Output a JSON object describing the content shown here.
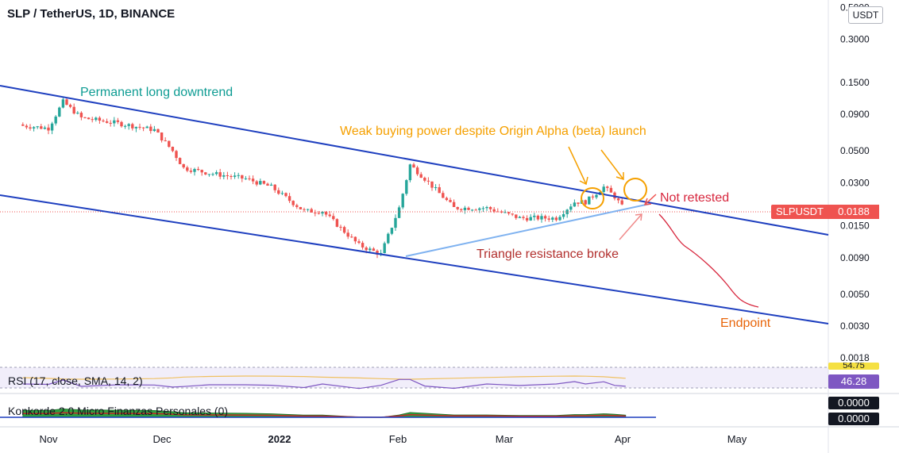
{
  "header": {
    "title": "SLP / TetherUS, 1D, BINANCE",
    "unit": "USDT"
  },
  "colors": {
    "up": "#26a69a",
    "down": "#ef5350",
    "channel": "#1e3fbf",
    "support": "#7fb2f0",
    "teal": "#0e9c93",
    "orange": "#f5a000",
    "red": "#d7263d"
  },
  "price_axis": {
    "labels": [
      "0.5000",
      "0.3000",
      "0.1500",
      "0.0900",
      "0.0500",
      "0.0300",
      "0.0150",
      "0.0090",
      "0.0050",
      "0.0030",
      "0.0018"
    ]
  },
  "time_axis": {
    "labels": [
      "Nov",
      "Dec",
      "2022",
      "Feb",
      "Mar",
      "Apr",
      "May"
    ]
  },
  "annotations": {
    "downtrend": "Permanent long downtrend",
    "weak_buying": "Weak buying power despite Origin Alpha (beta) launch",
    "not_retested": "Not retested",
    "triangle": "Triangle resistance broke",
    "endpoint": "Endpoint"
  },
  "last_price": {
    "symbol": "SLPUSDT",
    "value": "0.0188"
  },
  "rsi": {
    "label": "RSI (17, close, SMA, 14, 2)",
    "value": "46.28",
    "value2": "54.75"
  },
  "konkorde": {
    "label": "Konkorde 2.0 Micro Finanzas Personales (0)",
    "value1": "0.0000",
    "value2": "0.0000"
  },
  "chart_data": {
    "type": "line",
    "title": "SLP / TetherUS, 1D, BINANCE",
    "xlabel": "",
    "ylabel": "",
    "y_scale": "log",
    "ylim": [
      0.0018,
      0.5
    ],
    "x_ticks": [
      "Nov",
      "Dec",
      "2022",
      "Feb",
      "Mar",
      "Apr",
      "May"
    ],
    "y_ticks": [
      0.5,
      0.3,
      0.15,
      0.09,
      0.05,
      0.03,
      0.015,
      0.009,
      0.005,
      0.003,
      0.0018
    ],
    "series": [
      {
        "x": [
          "2021-10-25",
          "2021-11-01",
          "2021-11-05",
          "2021-11-10",
          "2021-11-20",
          "2021-11-30",
          "2021-12-05",
          "2021-12-08",
          "2021-12-15",
          "2021-12-25",
          "2022-01-01",
          "2022-01-10",
          "2022-01-15",
          "2022-01-25",
          "2022-01-31",
          "2022-02-05",
          "2022-02-08",
          "2022-02-12",
          "2022-02-20",
          "2022-03-01",
          "2022-03-10",
          "2022-03-20",
          "2022-03-25",
          "2022-03-28",
          "2022-04-02",
          "2022-04-05",
          "2022-04-08"
        ],
        "values": [
          0.075,
          0.072,
          0.11,
          0.085,
          0.078,
          0.07,
          0.05,
          0.038,
          0.035,
          0.032,
          0.028,
          0.019,
          0.019,
          0.011,
          0.0095,
          0.02,
          0.04,
          0.032,
          0.02,
          0.02,
          0.017,
          0.017,
          0.022,
          0.022,
          0.028,
          0.024,
          0.0188
        ]
      }
    ]
  }
}
